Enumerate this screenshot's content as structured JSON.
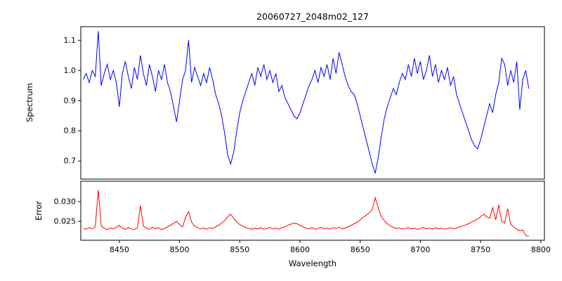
{
  "chart_data": {
    "type": "line",
    "title": "20060727_2048m02_127",
    "xlabel": "Wavelength",
    "xlim": [
      8418,
      8803
    ],
    "x_ticks": [
      8450,
      8500,
      8550,
      8600,
      8650,
      8700,
      8750,
      8800
    ],
    "grid": false,
    "legend": "none",
    "x": [
      8420,
      8422.5,
      8425,
      8427.5,
      8430,
      8432.5,
      8435,
      8437.5,
      8440,
      8442.5,
      8445,
      8447.5,
      8450,
      8452.5,
      8455,
      8457.5,
      8460,
      8462.5,
      8465,
      8467.5,
      8470,
      8472.5,
      8475,
      8477.5,
      8480,
      8482.5,
      8485,
      8487.5,
      8490,
      8492.5,
      8495,
      8497.5,
      8500,
      8502.5,
      8505,
      8507.5,
      8510,
      8512.5,
      8515,
      8517.5,
      8520,
      8522.5,
      8525,
      8527.5,
      8530,
      8532.5,
      8535,
      8537.5,
      8540,
      8542.5,
      8545,
      8547.5,
      8550,
      8552.5,
      8555,
      8557.5,
      8560,
      8562.5,
      8565,
      8567.5,
      8570,
      8572.5,
      8575,
      8577.5,
      8580,
      8582.5,
      8585,
      8587.5,
      8590,
      8592.5,
      8595,
      8597.5,
      8600,
      8602.5,
      8605,
      8607.5,
      8610,
      8612.5,
      8615,
      8617.5,
      8620,
      8622.5,
      8625,
      8627.5,
      8630,
      8632.5,
      8635,
      8637.5,
      8640,
      8642.5,
      8645,
      8647.5,
      8650,
      8652.5,
      8655,
      8657.5,
      8660,
      8662.5,
      8665,
      8667.5,
      8670,
      8672.5,
      8675,
      8677.5,
      8680,
      8682.5,
      8685,
      8687.5,
      8690,
      8692.5,
      8695,
      8697.5,
      8700,
      8702.5,
      8705,
      8707.5,
      8710,
      8712.5,
      8715,
      8717.5,
      8720,
      8722.5,
      8725,
      8727.5,
      8730,
      8732.5,
      8735,
      8737.5,
      8740,
      8742.5,
      8745,
      8747.5,
      8750,
      8752.5,
      8755,
      8757.5,
      8760,
      8762.5,
      8765,
      8767.5,
      8770,
      8772.5,
      8775,
      8777.5,
      8780,
      8782.5,
      8785,
      8787.5,
      8790
    ],
    "panels": [
      {
        "name": "spectrum",
        "ylabel": "Spectrum",
        "color": "#0000ff",
        "ylim": [
          0.64,
          1.145
        ],
        "y_ticks": [
          0.7,
          0.8,
          0.9,
          1.0,
          1.1
        ],
        "annotations": [
          "absorption lines near 8498, 8542, 8598, 8662, 8750"
        ],
        "values": [
          0.97,
          0.99,
          0.96,
          1.0,
          0.98,
          1.13,
          0.95,
          0.99,
          1.02,
          0.97,
          1.0,
          0.96,
          0.88,
          0.99,
          1.03,
          0.98,
          0.94,
          1.01,
          0.97,
          1.05,
          0.99,
          0.95,
          1.02,
          0.98,
          0.93,
          1.0,
          0.97,
          1.02,
          0.96,
          0.93,
          0.88,
          0.83,
          0.9,
          0.97,
          1.0,
          1.1,
          0.96,
          1.01,
          0.98,
          0.95,
          0.99,
          0.96,
          1.01,
          0.97,
          0.92,
          0.89,
          0.85,
          0.79,
          0.72,
          0.69,
          0.73,
          0.8,
          0.86,
          0.9,
          0.93,
          0.96,
          0.99,
          0.95,
          1.01,
          0.98,
          1.02,
          0.97,
          1.0,
          0.96,
          0.99,
          0.93,
          0.95,
          0.91,
          0.89,
          0.87,
          0.85,
          0.84,
          0.86,
          0.89,
          0.92,
          0.95,
          0.97,
          1.0,
          0.96,
          1.01,
          0.98,
          1.02,
          0.97,
          1.04,
          0.99,
          1.06,
          1.02,
          0.98,
          0.95,
          0.93,
          0.92,
          0.89,
          0.85,
          0.81,
          0.77,
          0.73,
          0.69,
          0.66,
          0.71,
          0.78,
          0.84,
          0.88,
          0.91,
          0.94,
          0.92,
          0.96,
          0.99,
          0.97,
          1.02,
          0.98,
          1.04,
          0.99,
          1.03,
          0.97,
          1.0,
          1.05,
          0.98,
          1.02,
          0.96,
          1.0,
          0.97,
          1.01,
          0.95,
          0.98,
          0.92,
          0.89,
          0.86,
          0.83,
          0.8,
          0.77,
          0.75,
          0.74,
          0.77,
          0.81,
          0.85,
          0.89,
          0.86,
          0.92,
          0.96,
          1.04,
          1.02,
          0.95,
          1.0,
          0.96,
          1.03,
          0.87,
          0.97,
          1.0,
          0.94
        ]
      },
      {
        "name": "error",
        "ylabel": "Error",
        "color": "#ff0000",
        "ylim": [
          0.0202,
          0.0352
        ],
        "y_ticks": [
          0.025,
          0.03
        ],
        "annotations": [
          "error spikes near 8432, 8468, 8505, 8662, 8760-8772"
        ],
        "values": [
          0.0232,
          0.023,
          0.0234,
          0.0231,
          0.0236,
          0.033,
          0.0238,
          0.0232,
          0.0229,
          0.0233,
          0.0231,
          0.0235,
          0.024,
          0.0232,
          0.023,
          0.0234,
          0.0231,
          0.0229,
          0.0233,
          0.029,
          0.0238,
          0.0232,
          0.023,
          0.0235,
          0.0231,
          0.0234,
          0.0229,
          0.0232,
          0.0236,
          0.024,
          0.0245,
          0.025,
          0.0242,
          0.0236,
          0.026,
          0.0275,
          0.0248,
          0.0238,
          0.0234,
          0.0231,
          0.0233,
          0.023,
          0.0234,
          0.0232,
          0.0236,
          0.024,
          0.0246,
          0.0252,
          0.0262,
          0.0268,
          0.0258,
          0.0248,
          0.0242,
          0.0238,
          0.0234,
          0.0232,
          0.023,
          0.0233,
          0.0231,
          0.0234,
          0.023,
          0.0232,
          0.0235,
          0.0231,
          0.0233,
          0.023,
          0.0234,
          0.0236,
          0.024,
          0.0243,
          0.0246,
          0.0244,
          0.024,
          0.0236,
          0.0233,
          0.0231,
          0.0234,
          0.023,
          0.0232,
          0.0235,
          0.0231,
          0.0233,
          0.023,
          0.0234,
          0.0232,
          0.0235,
          0.0231,
          0.0233,
          0.0236,
          0.024,
          0.0244,
          0.0248,
          0.0254,
          0.026,
          0.0266,
          0.0272,
          0.028,
          0.031,
          0.0285,
          0.0262,
          0.0252,
          0.0244,
          0.0238,
          0.0235,
          0.0232,
          0.0233,
          0.023,
          0.0232,
          0.0234,
          0.0231,
          0.0233,
          0.023,
          0.0232,
          0.0235,
          0.0231,
          0.0233,
          0.023,
          0.0234,
          0.0231,
          0.0233,
          0.023,
          0.0232,
          0.0234,
          0.0231,
          0.0233,
          0.0236,
          0.0238,
          0.0241,
          0.0244,
          0.0248,
          0.0252,
          0.0256,
          0.0262,
          0.0268,
          0.0262,
          0.0258,
          0.0285,
          0.0254,
          0.0292,
          0.025,
          0.0246,
          0.0282,
          0.0242,
          0.0236,
          0.023,
          0.0226,
          0.0228,
          0.0214,
          0.0212
        ]
      }
    ]
  }
}
